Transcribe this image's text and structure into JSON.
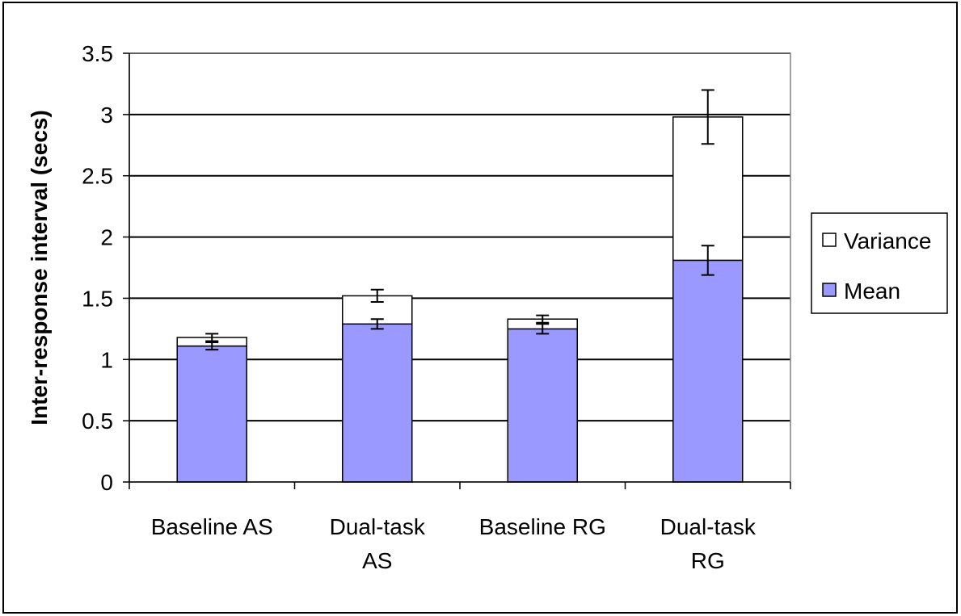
{
  "chart_data": {
    "type": "bar",
    "stacked": true,
    "categories": [
      [
        "Baseline AS"
      ],
      [
        "Dual-task",
        "AS"
      ],
      [
        "Baseline RG"
      ],
      [
        "Dual-task",
        "RG"
      ]
    ],
    "series": [
      {
        "name": "Mean",
        "values": [
          1.11,
          1.29,
          1.25,
          1.81
        ],
        "error": [
          0.03,
          0.04,
          0.04,
          0.12
        ],
        "color": "#9999ff"
      },
      {
        "name": "Variance",
        "values": [
          0.07,
          0.23,
          0.08,
          1.17
        ],
        "error": [
          0.03,
          0.05,
          0.03,
          0.22
        ],
        "color": "#ffffff"
      }
    ],
    "ylabel": "Inter-response interval (secs)",
    "xlabel": "",
    "ylim": [
      0,
      3.5
    ],
    "yticks": [
      0,
      0.5,
      1,
      1.5,
      2,
      2.5,
      3,
      3.5
    ],
    "grid": true,
    "legend": {
      "position": "right",
      "entries": [
        "Variance",
        "Mean"
      ]
    }
  }
}
